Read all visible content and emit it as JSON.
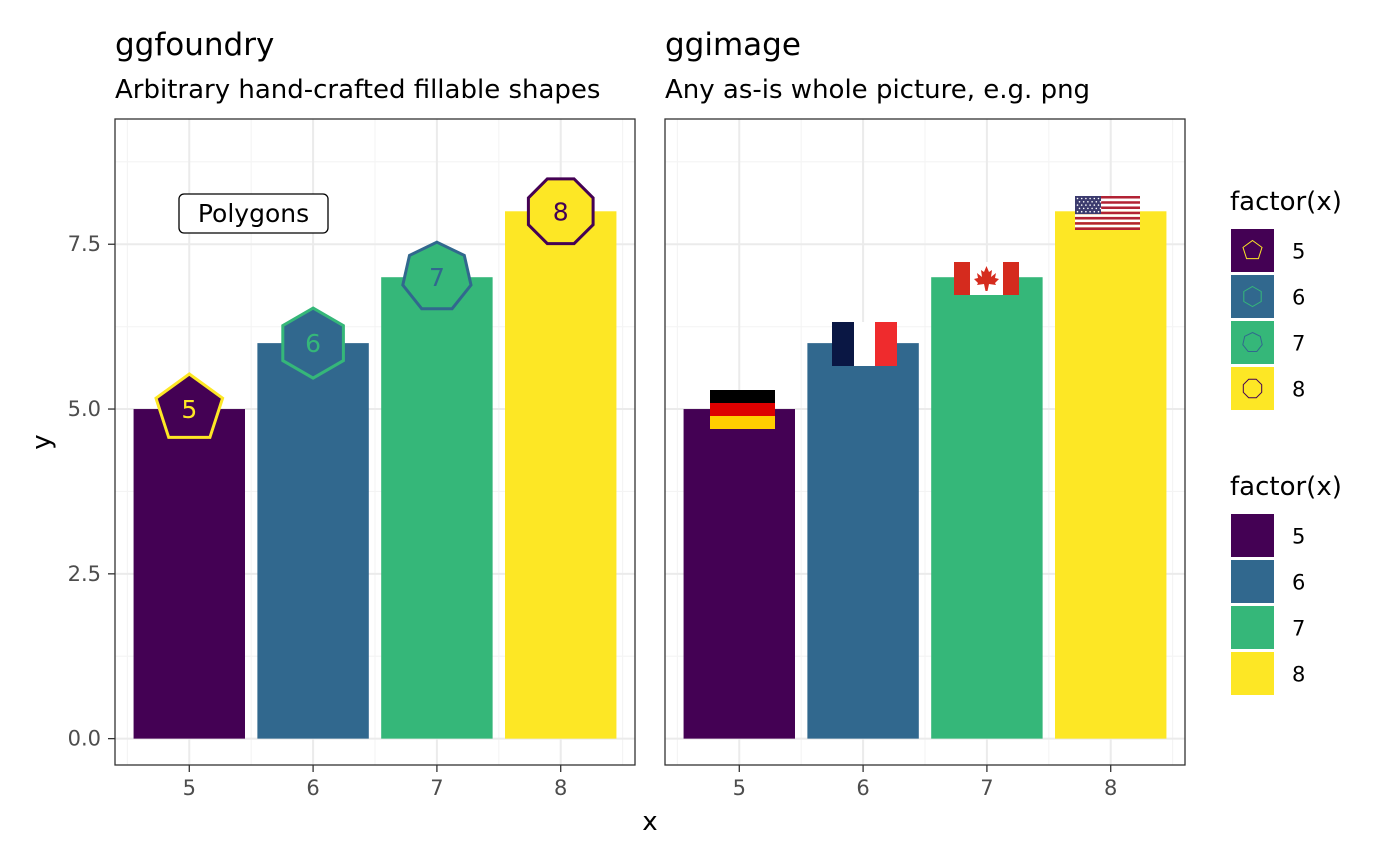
{
  "colors": {
    "v5": "#440154",
    "v6": "#31688E",
    "v7": "#35B779",
    "v8": "#FDE725",
    "panel_border": "#333333",
    "grid_major": "#EBEBEB",
    "grid_minor": "#F4F4F4",
    "axis_text": "#4D4D4D"
  },
  "chart_data": [
    {
      "type": "bar",
      "panel": "left",
      "title": "ggfoundry",
      "subtitle": "Arbitrary hand-crafted fillable shapes",
      "categories": [
        "5",
        "6",
        "7",
        "8"
      ],
      "values": [
        5,
        6,
        7,
        8
      ],
      "xlabel": "x",
      "ylabel": "y",
      "ylim": [
        -0.4,
        9.4
      ],
      "yticks": [
        "0.0",
        "2.5",
        "5.0",
        "7.5"
      ],
      "xticks": [
        "5",
        "6",
        "7",
        "8"
      ],
      "grid": true,
      "annotation": "Polygons",
      "markers": [
        {
          "category": "5",
          "shape": "pentagon",
          "label": "5"
        },
        {
          "category": "6",
          "shape": "hexagon",
          "label": "6"
        },
        {
          "category": "7",
          "shape": "heptagon",
          "label": "7"
        },
        {
          "category": "8",
          "shape": "octagon",
          "label": "8"
        }
      ]
    },
    {
      "type": "bar",
      "panel": "right",
      "title": "ggimage",
      "subtitle": "Any as-is whole picture, e.g. png",
      "categories": [
        "5",
        "6",
        "7",
        "8"
      ],
      "values": [
        5,
        6,
        7,
        8
      ],
      "xlabel": "x",
      "ylim": [
        -0.4,
        9.4
      ],
      "xticks": [
        "5",
        "6",
        "7",
        "8"
      ],
      "grid": true,
      "images": [
        {
          "category": "5",
          "image": "germany-flag-icon"
        },
        {
          "category": "6",
          "image": "france-flag-icon"
        },
        {
          "category": "7",
          "image": "canada-flag-icon"
        },
        {
          "category": "8",
          "image": "usa-flag-icon"
        }
      ]
    }
  ],
  "legends": [
    {
      "title": "factor(x)",
      "placement": "right",
      "kind": "shape",
      "entries": [
        {
          "label": "5",
          "shape": "pentagon"
        },
        {
          "label": "6",
          "shape": "hexagon"
        },
        {
          "label": "7",
          "shape": "heptagon"
        },
        {
          "label": "8",
          "shape": "octagon"
        }
      ]
    },
    {
      "title": "factor(x)",
      "placement": "right",
      "kind": "fill",
      "entries": [
        {
          "label": "5"
        },
        {
          "label": "6"
        },
        {
          "label": "7"
        },
        {
          "label": "8"
        }
      ]
    }
  ]
}
